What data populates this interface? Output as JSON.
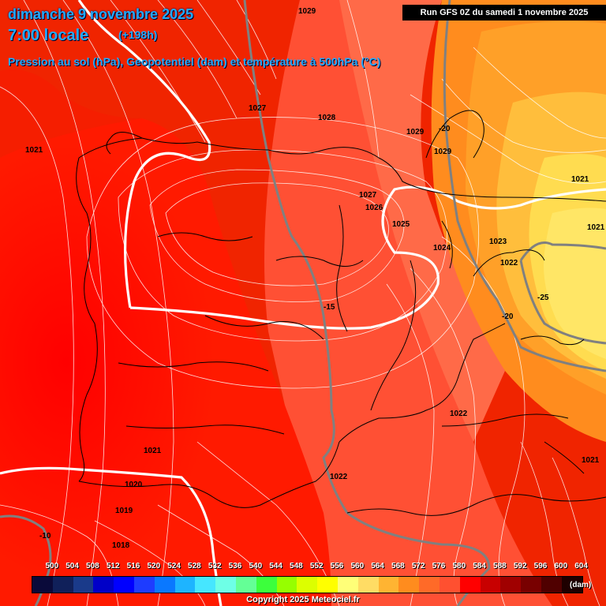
{
  "header": {
    "date": "dimanche 9 novembre 2025",
    "time": "7:00 locale",
    "lead": "(+198h)",
    "subtitle": "Pression au sol (hPa), Geopotentiel (dam) et température à 500hPa (°C)",
    "run": "Run GFS 0Z du samedi 1 novembre 2025"
  },
  "pressure_labels": [
    {
      "id": "p1029a",
      "text": "1029"
    },
    {
      "id": "p1027a",
      "text": "1027"
    },
    {
      "id": "p1028",
      "text": "1028"
    },
    {
      "id": "p1029b",
      "text": "1029"
    },
    {
      "id": "p1029c",
      "text": "1029"
    },
    {
      "id": "p1021a",
      "text": "1021"
    },
    {
      "id": "p1021b",
      "text": "1021"
    },
    {
      "id": "p1021c",
      "text": "1021"
    },
    {
      "id": "p1027b",
      "text": "1027"
    },
    {
      "id": "p1026",
      "text": "1026"
    },
    {
      "id": "p1025",
      "text": "1025"
    },
    {
      "id": "p1024",
      "text": "1024"
    },
    {
      "id": "p1023",
      "text": "1023"
    },
    {
      "id": "p1022a",
      "text": "1022"
    },
    {
      "id": "p1022b",
      "text": "1022"
    },
    {
      "id": "p1022c",
      "text": "1022"
    },
    {
      "id": "p1021d",
      "text": "1021"
    },
    {
      "id": "p1021e",
      "text": "1021"
    },
    {
      "id": "p1020",
      "text": "1020"
    },
    {
      "id": "p1019",
      "text": "1019"
    },
    {
      "id": "p1018",
      "text": "1018"
    }
  ],
  "temperature_labels": [
    {
      "id": "tm20a",
      "text": "-20"
    },
    {
      "id": "tm15",
      "text": "-15"
    },
    {
      "id": "tm25",
      "text": "-25"
    },
    {
      "id": "tm20b",
      "text": "-20"
    },
    {
      "id": "tm10",
      "text": "-10"
    }
  ],
  "legend": {
    "values": [
      "500",
      "504",
      "508",
      "512",
      "516",
      "520",
      "524",
      "528",
      "532",
      "536",
      "540",
      "544",
      "548",
      "552",
      "556",
      "560",
      "564",
      "568",
      "572",
      "576",
      "580",
      "584",
      "588",
      "592",
      "596",
      "600",
      "604"
    ],
    "colors": [
      "#0a0a3a",
      "#10205a",
      "#1a3a8a",
      "#0000c8",
      "#0000ff",
      "#1e3cff",
      "#0a78ff",
      "#1eb4ff",
      "#46e6ff",
      "#6effe6",
      "#64ff96",
      "#3cff3c",
      "#96ff00",
      "#dcff00",
      "#ffff00",
      "#ffff78",
      "#ffdc64",
      "#ffb432",
      "#ff8c1e",
      "#ff6a28",
      "#ff5030",
      "#ff0000",
      "#c80000",
      "#a00000",
      "#780000",
      "#500000",
      "#1e0000"
    ],
    "unit": "(dam)"
  },
  "copyright": "Copyright 2025 Meteociel.fr"
}
